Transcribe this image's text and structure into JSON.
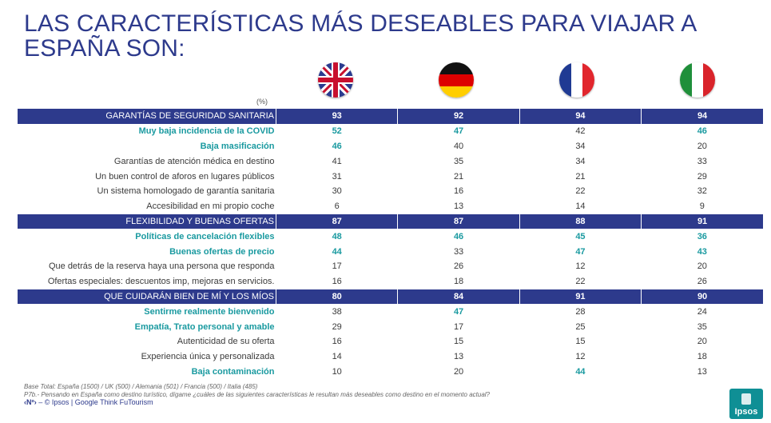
{
  "title": "LAS CARACTERÍSTICAS MÁS DESEABLES PARA VIAJAR A ESPAÑA SON:",
  "pct_label": "(%)",
  "flags": [
    {
      "name": "uk-flag-icon"
    },
    {
      "name": "germany-flag-icon"
    },
    {
      "name": "france-flag-icon"
    },
    {
      "name": "italy-flag-icon"
    }
  ],
  "rows": [
    {
      "type": "cat",
      "label": "GARANTÍAS DE SEGURIDAD SANITARIA",
      "values": [
        "93",
        "92",
        "94",
        "94"
      ],
      "hl_label": false,
      "hl": [
        false,
        false,
        false,
        false
      ]
    },
    {
      "type": "sub",
      "label": "Muy baja incidencia de la COVID",
      "values": [
        "52",
        "47",
        "42",
        "46"
      ],
      "hl_label": true,
      "hl": [
        true,
        true,
        false,
        true
      ]
    },
    {
      "type": "sub",
      "label": "Baja masificación",
      "values": [
        "46",
        "40",
        "34",
        "20"
      ],
      "hl_label": true,
      "hl": [
        true,
        false,
        false,
        false
      ]
    },
    {
      "type": "sub",
      "label": "Garantías de atención médica en destino",
      "values": [
        "41",
        "35",
        "34",
        "33"
      ],
      "hl_label": false,
      "hl": [
        false,
        false,
        false,
        false
      ]
    },
    {
      "type": "sub",
      "label": "Un buen control de aforos en lugares públicos",
      "values": [
        "31",
        "21",
        "21",
        "29"
      ],
      "hl_label": false,
      "hl": [
        false,
        false,
        false,
        false
      ]
    },
    {
      "type": "sub",
      "label": "Un sistema homologado de garantía sanitaria",
      "values": [
        "30",
        "16",
        "22",
        "32"
      ],
      "hl_label": false,
      "hl": [
        false,
        false,
        false,
        false
      ]
    },
    {
      "type": "sub",
      "label": "Accesibilidad en mi propio coche",
      "values": [
        "6",
        "13",
        "14",
        "9"
      ],
      "hl_label": false,
      "hl": [
        false,
        false,
        false,
        false
      ]
    },
    {
      "type": "cat",
      "label": "FLEXIBILIDAD Y BUENAS OFERTAS",
      "values": [
        "87",
        "87",
        "88",
        "91"
      ],
      "hl_label": false,
      "hl": [
        false,
        false,
        false,
        false
      ]
    },
    {
      "type": "sub",
      "label": "Políticas de cancelación flexibles",
      "values": [
        "48",
        "46",
        "45",
        "36"
      ],
      "hl_label": true,
      "hl": [
        true,
        true,
        true,
        true
      ]
    },
    {
      "type": "sub",
      "label": "Buenas ofertas de precio",
      "values": [
        "44",
        "33",
        "47",
        "43"
      ],
      "hl_label": true,
      "hl": [
        true,
        false,
        true,
        true
      ]
    },
    {
      "type": "sub",
      "label": "Que detrás de la reserva haya una persona que responda",
      "values": [
        "17",
        "26",
        "12",
        "20"
      ],
      "hl_label": false,
      "hl": [
        false,
        false,
        false,
        false
      ]
    },
    {
      "type": "sub",
      "label": "Ofertas especiales: descuentos imp, mejoras en servicios.",
      "values": [
        "16",
        "18",
        "22",
        "26"
      ],
      "hl_label": false,
      "hl": [
        false,
        false,
        false,
        false
      ]
    },
    {
      "type": "cat",
      "label": "QUE CUIDARÁN BIEN DE MÍ Y LOS MÍOS",
      "values": [
        "80",
        "84",
        "91",
        "90"
      ],
      "hl_label": false,
      "hl": [
        false,
        false,
        false,
        false
      ]
    },
    {
      "type": "sub",
      "label": "Sentirme realmente bienvenido",
      "values": [
        "38",
        "47",
        "28",
        "24"
      ],
      "hl_label": true,
      "hl": [
        false,
        true,
        false,
        false
      ]
    },
    {
      "type": "sub",
      "label": "Empatía, Trato personal y amable",
      "values": [
        "29",
        "17",
        "25",
        "35"
      ],
      "hl_label": true,
      "hl": [
        false,
        false,
        false,
        false
      ]
    },
    {
      "type": "sub",
      "label": "Autenticidad de su oferta",
      "values": [
        "16",
        "15",
        "15",
        "20"
      ],
      "hl_label": false,
      "hl": [
        false,
        false,
        false,
        false
      ]
    },
    {
      "type": "sub",
      "label": "Experiencia única y personalizada",
      "values": [
        "14",
        "13",
        "12",
        "18"
      ],
      "hl_label": false,
      "hl": [
        false,
        false,
        false,
        false
      ]
    },
    {
      "type": "sub",
      "label": "Baja contaminación",
      "values": [
        "10",
        "20",
        "44",
        "13"
      ],
      "hl_label": true,
      "hl": [
        false,
        false,
        true,
        false
      ]
    }
  ],
  "notes": {
    "base": "Base Total:  España (1500) / UK (500) / Alemania (501) / Francia (500) / Italia (485)",
    "question": "P7b.- Pensando en España como destino turístico, dígame ¿cuáles de las siguientes características le resultan más deseables como destino en el momento actual?"
  },
  "footer": {
    "prefix": "‹Nº›",
    "text": " – © Ipsos | Google Think FuTourism"
  },
  "logo": "Ipsos"
}
